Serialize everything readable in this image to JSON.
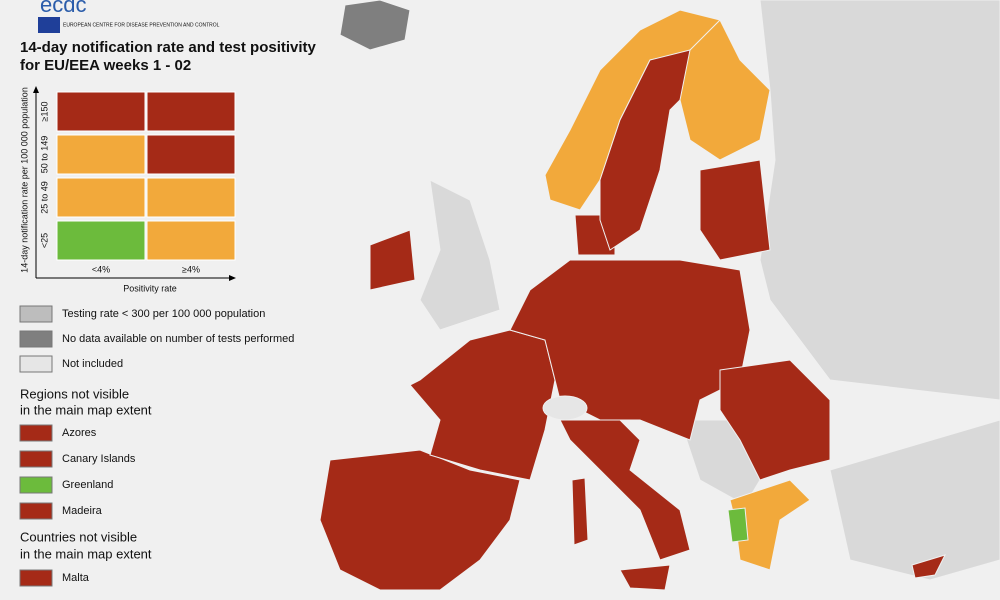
{
  "logo": {
    "name": "ecdc",
    "subtitle": "EUROPEAN CENTRE FOR DISEASE PREVENTION AND CONTROL"
  },
  "title_lines": [
    "14-day notification rate and test positivity",
    "for EU/EEA weeks 1 - 02"
  ],
  "matrix": {
    "y_label": "14-day notification rate per 100 000 population",
    "rows": [
      "≥150",
      "50 to 149",
      "25 to 49",
      "<25"
    ],
    "columns": [
      "<4%",
      "≥4%"
    ],
    "x_label": "Positivity rate",
    "cells": [
      [
        "#a52a17",
        "#a52a17"
      ],
      [
        "#f2a93b",
        "#a52a17"
      ],
      [
        "#f2a93b",
        "#f2a93b"
      ],
      [
        "#6cbb3c",
        "#f2a93b"
      ]
    ]
  },
  "legend": [
    {
      "label": "Testing rate < 300 per 100 000 population",
      "color": "#bdbdbd"
    },
    {
      "label": "No data available on number of tests performed",
      "color": "#7f7f7f"
    },
    {
      "label": "Not included",
      "color": "#e6e6e6"
    }
  ],
  "regions": {
    "title_lines": [
      "Regions not visible",
      "in the main map extent"
    ],
    "items": [
      {
        "label": "Azores",
        "color": "#a52a17"
      },
      {
        "label": "Canary Islands",
        "color": "#a52a17"
      },
      {
        "label": "Greenland",
        "color": "#6cbb3c"
      },
      {
        "label": "Madeira",
        "color": "#a52a17"
      }
    ]
  },
  "countries": {
    "title_lines": [
      "Countries not visible",
      "in the main map extent"
    ],
    "items": [
      {
        "label": "Malta",
        "color": "#a52a17"
      }
    ]
  }
}
